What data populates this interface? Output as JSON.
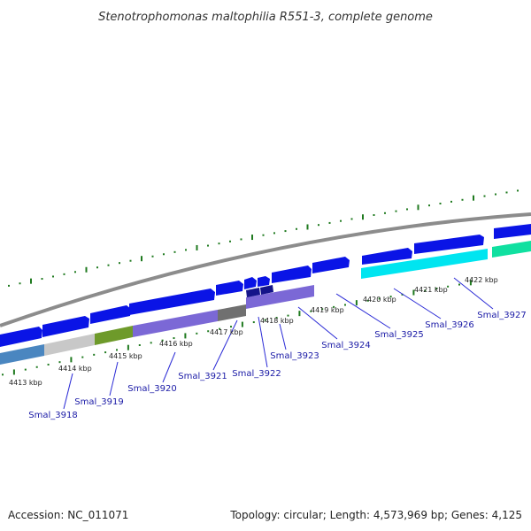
{
  "title": "Stenotrophomonas maltophilia R551-3, complete genome",
  "footer": {
    "accession": "Accession: NC_011071",
    "summary": "Topology: circular; Length: 4,573,969 bp; Genes: 4,125"
  },
  "colors": {
    "backbone": "#8c8c8c",
    "tick": "#1f7a1f",
    "label_line": "#2b2bd6",
    "label_text": "#1a1aa6",
    "cds_forward": "#0a14e6"
  },
  "position_labels": [
    "4413 kbp",
    "4414 kbp",
    "4415 kbp",
    "4416 kbp",
    "4417 kbp",
    "4418 kbp",
    "4419 kbp",
    "4420 kbp",
    "4421 kbp",
    "4422 kbp"
  ],
  "gene_labels": [
    "Smal_3918",
    "Smal_3919",
    "Smal_3920",
    "Smal_3921",
    "Smal_3922",
    "Smal_3923",
    "Smal_3924",
    "Smal_3925",
    "Smal_3926",
    "Smal_3927"
  ],
  "color_track": [
    {
      "color": "#4a86c0"
    },
    {
      "color": "#c8c8c8"
    },
    {
      "color": "#6e9a2a"
    },
    {
      "color": "#7b68d6"
    },
    {
      "color": "#707070"
    },
    {
      "color": "#7b68d6"
    },
    {
      "color": "#00e5f0"
    },
    {
      "color": "#10e0a0"
    }
  ]
}
